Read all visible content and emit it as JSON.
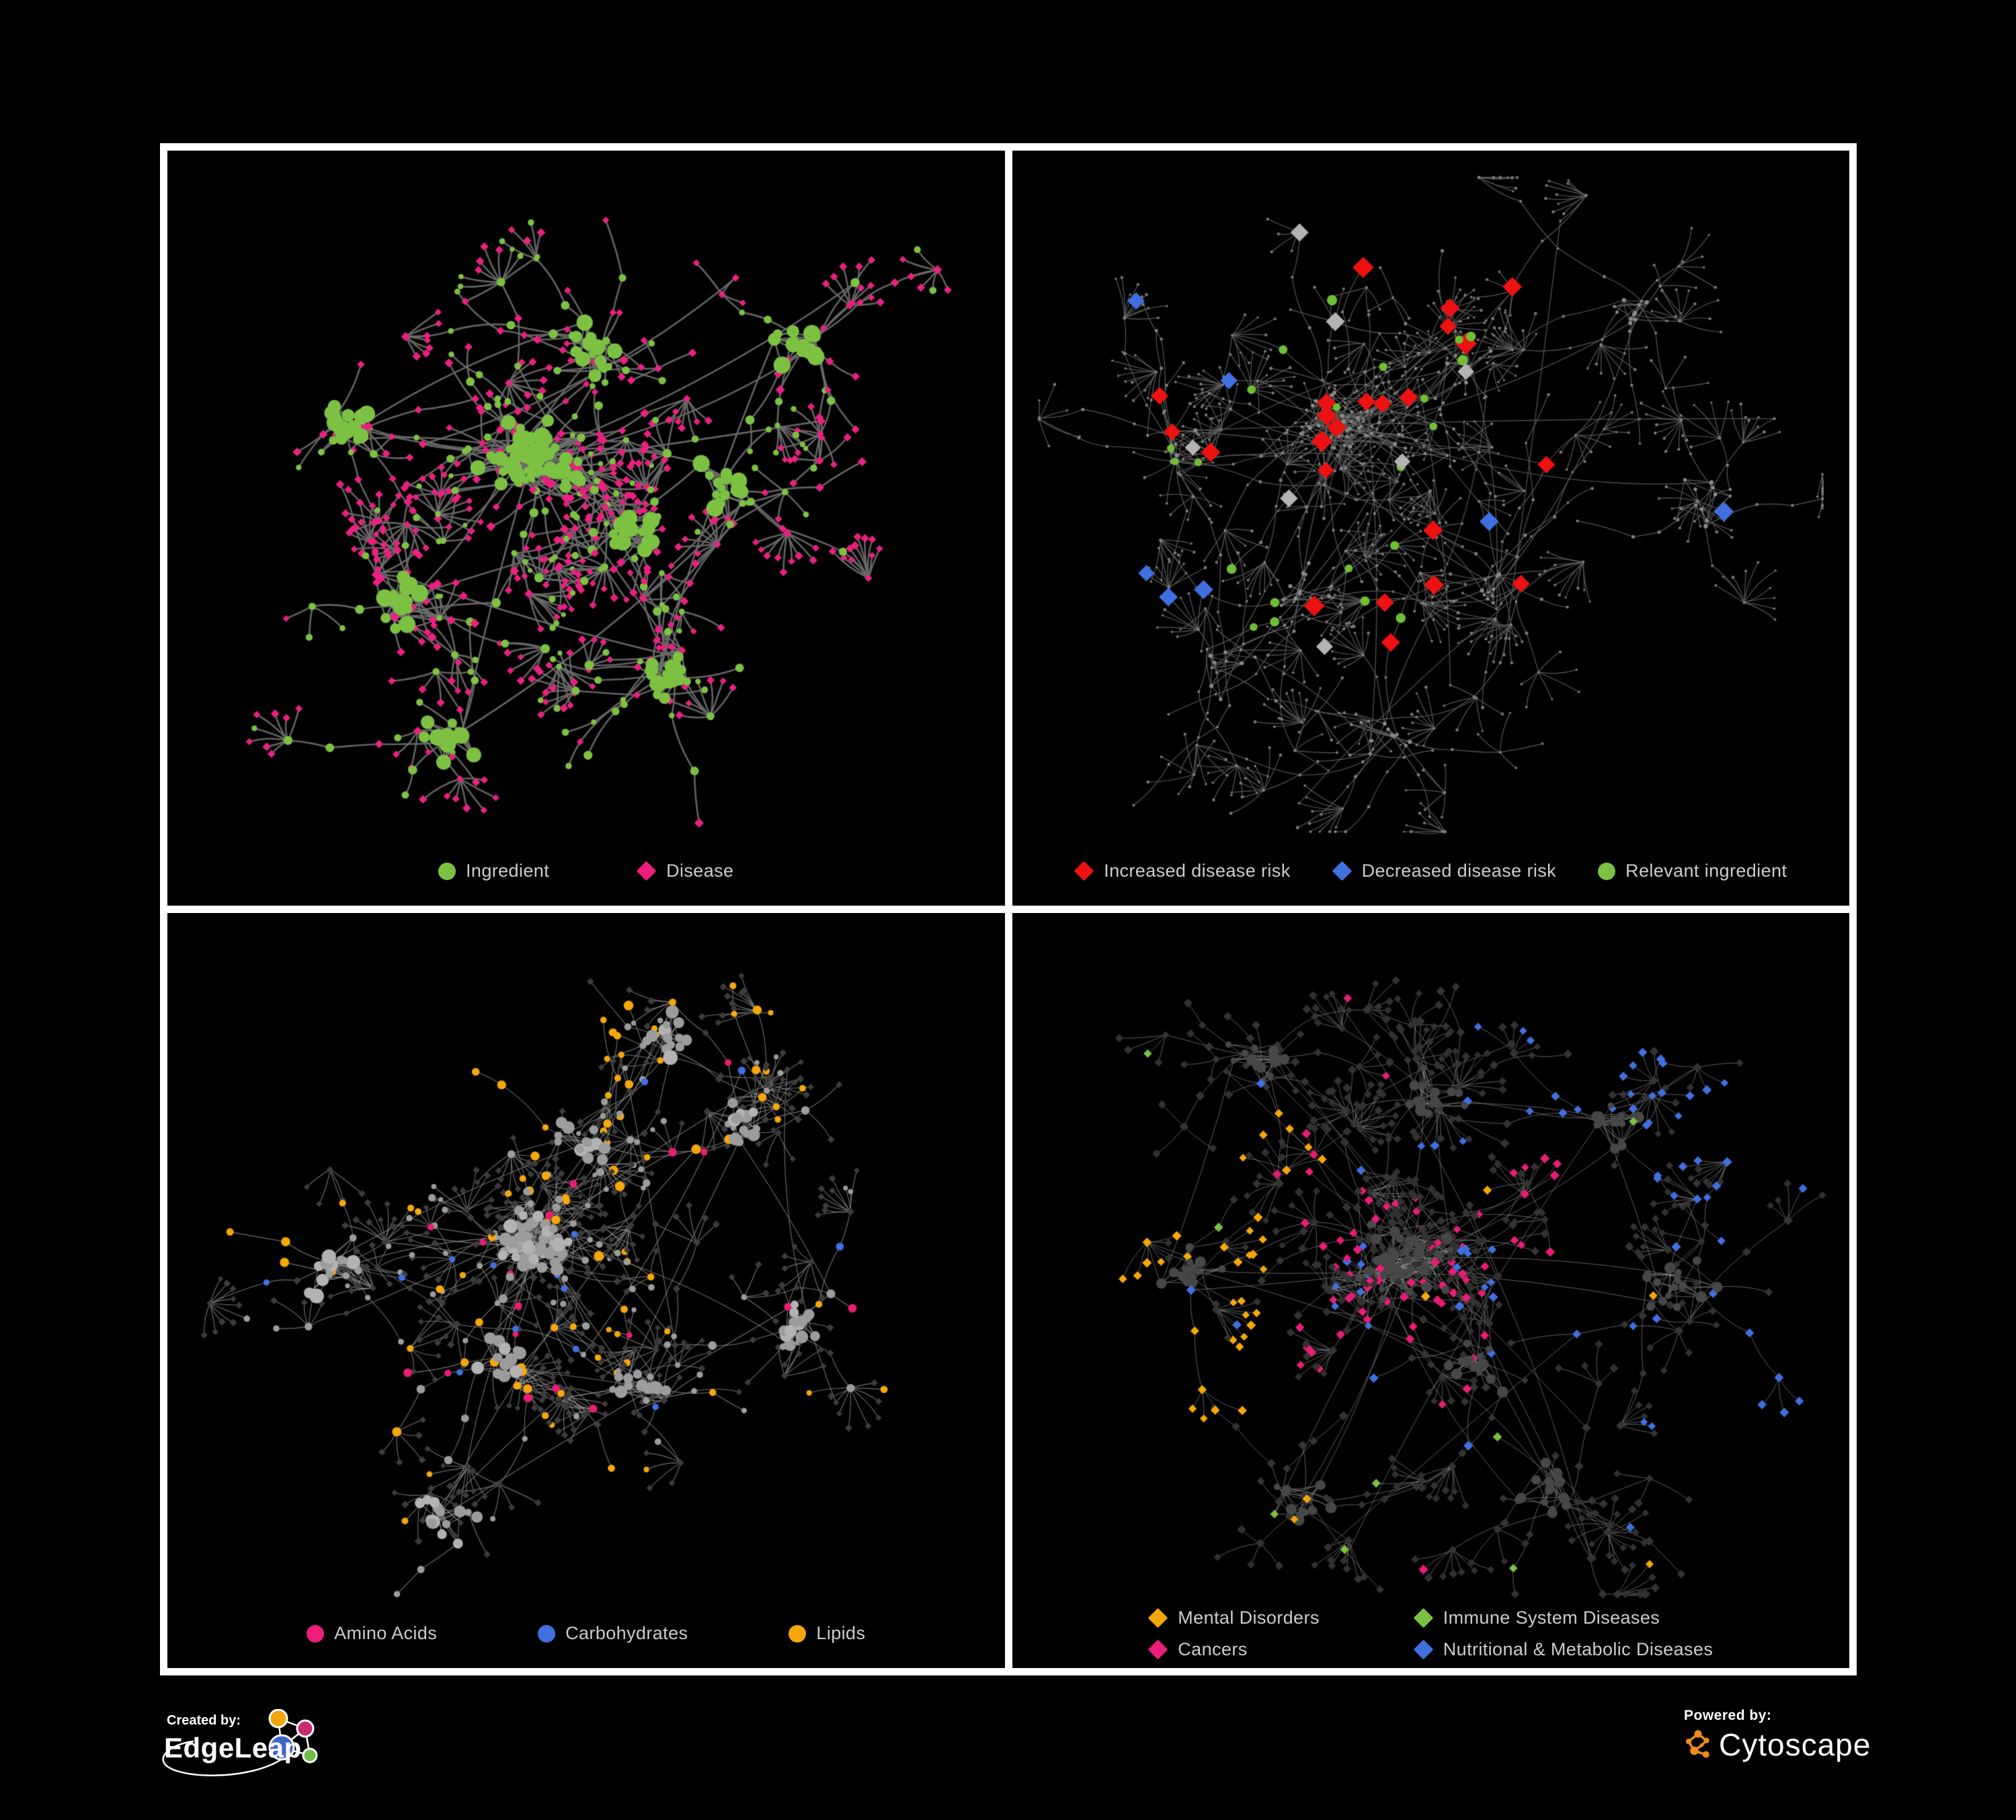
{
  "page": {
    "background": "#000000",
    "frame_border_color": "#FFFFFF"
  },
  "colors": {
    "green": "#7DC142",
    "magenta": "#EC1E79",
    "red": "#EE1111",
    "blue": "#4070E0",
    "orange": "#F5A70A",
    "gray_node": "#9C9C9C",
    "dark_diamond": "#343434",
    "legend_text": "#CCCCCC"
  },
  "panels": [
    {
      "id": "ingredient-disease",
      "legend": {
        "rows": [
          [
            {
              "shape": "circle",
              "color": "#7DC142",
              "label": "Ingredient"
            },
            {
              "shape": "diamond",
              "color": "#EC1E79",
              "label": "Disease"
            }
          ]
        ]
      },
      "network": {
        "seed": 7,
        "clusterPos": [
          [
            0.44,
            0.4
          ],
          [
            0.22,
            0.36
          ],
          [
            0.5,
            0.27
          ],
          [
            0.56,
            0.5
          ],
          [
            0.28,
            0.6
          ],
          [
            0.6,
            0.7
          ],
          [
            0.76,
            0.26
          ],
          [
            0.34,
            0.78
          ],
          [
            0.67,
            0.45
          ]
        ],
        "coreMain": 55,
        "coreSat": 16,
        "coreDensity": 0.65,
        "branches": 135,
        "branchLen": 3,
        "burstProb": 0.5,
        "burstMax": 8,
        "cross": 10,
        "edge": {
          "color": "#6B6B6B",
          "width": 2.6,
          "alpha": 0.92
        },
        "roles": {
          "core": [
            {
              "w": 1,
              "shape": "circle",
              "color": "#7DC142",
              "rmin": 5,
              "rmax": 13
            }
          ],
          "mid": [
            {
              "w": 0.42,
              "shape": "circle",
              "color": "#7DC142",
              "rmin": 4,
              "rmax": 7
            },
            {
              "w": 0.58,
              "shape": "diamond",
              "color": "#E82180",
              "rmin": 4,
              "rmax": 5.5
            }
          ],
          "leaf": [
            {
              "w": 0.8,
              "shape": "diamond",
              "color": "#E82180",
              "rmin": 3.8,
              "rmax": 5
            },
            {
              "w": 0.2,
              "shape": "circle",
              "color": "#7DC142",
              "rmin": 3.5,
              "rmax": 5.5
            }
          ]
        }
      }
    },
    {
      "id": "disease-risk",
      "legend": {
        "rows": [
          [
            {
              "shape": "diamond",
              "color": "#EE1111",
              "label": "Increased disease risk"
            },
            {
              "shape": "diamond",
              "color": "#4070E0",
              "label": "Decreased disease risk"
            },
            {
              "shape": "circle",
              "color": "#7DC142",
              "label": "Relevant ingredient"
            }
          ]
        ]
      },
      "network": {
        "seed": 23,
        "clusterPos": [
          [
            0.4,
            0.36
          ],
          [
            0.2,
            0.38
          ],
          [
            0.54,
            0.28
          ],
          [
            0.34,
            0.58
          ],
          [
            0.58,
            0.58
          ],
          [
            0.74,
            0.22
          ],
          [
            0.82,
            0.46
          ],
          [
            0.44,
            0.78
          ],
          [
            0.26,
            0.68
          ]
        ],
        "coreMain": 40,
        "coreSat": 12,
        "coreDensity": 0.5,
        "branches": 160,
        "branchLen": 4,
        "burstProb": 0.55,
        "burstMax": 9,
        "cross": 12,
        "edge": {
          "color": "#5E5E5E",
          "width": 1.2,
          "alpha": 0.95
        },
        "roles": {
          "core": [
            {
              "w": 1,
              "shape": "circle",
              "color": "#8A8A8A",
              "rmin": 2,
              "rmax": 3.2
            }
          ],
          "mid": [
            {
              "w": 1,
              "shape": "circle",
              "color": "#7F7F7F",
              "rmin": 1.8,
              "rmax": 2.6
            }
          ],
          "leaf": [
            {
              "w": 1,
              "shape": "circle",
              "color": "#777777",
              "rmin": 1.6,
              "rmax": 2.4
            }
          ]
        },
        "overlays": [
          {
            "count": 26,
            "shape": "diamond",
            "color": "#EE1111",
            "zone": "central",
            "rmin": 9.5,
            "rmax": 12.5
          },
          {
            "count": 7,
            "shape": "diamond",
            "color": "#B3B3B3",
            "zone": "central",
            "rmin": 9,
            "rmax": 11
          },
          {
            "count": 7,
            "shape": "diamond",
            "color": "#4070E0",
            "zone": "any",
            "rmin": 9,
            "rmax": 11.5
          },
          {
            "count": 22,
            "shape": "circle",
            "color": "#6FBF34",
            "zone": "central",
            "rmin": 5.5,
            "rmax": 8
          }
        ]
      }
    },
    {
      "id": "macronutrient-classes",
      "legend": {
        "rows": [
          [
            {
              "shape": "circle",
              "color": "#EC1E79",
              "label": "Amino Acids"
            },
            {
              "shape": "circle",
              "color": "#4070E0",
              "label": "Carbohydrates"
            },
            {
              "shape": "circle",
              "color": "#F5A70A",
              "label": "Lipids"
            }
          ]
        ]
      },
      "network": {
        "seed": 5,
        "clusterPos": [
          [
            0.44,
            0.44
          ],
          [
            0.21,
            0.47
          ],
          [
            0.5,
            0.31
          ],
          [
            0.4,
            0.6
          ],
          [
            0.56,
            0.62
          ],
          [
            0.68,
            0.28
          ],
          [
            0.76,
            0.54
          ],
          [
            0.34,
            0.8
          ],
          [
            0.6,
            0.16
          ]
        ],
        "coreMain": 60,
        "coreSat": 14,
        "coreDensity": 0.6,
        "branches": 130,
        "branchLen": 3,
        "burstProb": 0.5,
        "burstMax": 9,
        "cross": 10,
        "edge": {
          "color": "#8F8F8F",
          "width": 1.1,
          "alpha": 0.8
        },
        "roles": {
          "core": [
            {
              "w": 0.8,
              "shape": "circle",
              "color": "#9C9C9C",
              "rmin": 5,
              "rmax": 10
            },
            {
              "w": 0.2,
              "shape": "circle",
              "color": "#B3B3B3",
              "rmin": 6,
              "rmax": 11
            }
          ],
          "mid": [
            {
              "w": 0.5,
              "shape": "diamond",
              "color": "#3C3C3C",
              "rmin": 3.6,
              "rmax": 4.6
            },
            {
              "w": 0.22,
              "shape": "circle",
              "color": "#9C9C9C",
              "rmin": 4,
              "rmax": 6.5
            },
            {
              "w": 0.15,
              "shape": "circle",
              "color": "#F5A70A",
              "rmin": 4.5,
              "rmax": 7
            },
            {
              "w": 0.08,
              "shape": "circle",
              "color": "#E81D74",
              "rmin": 4.5,
              "rmax": 6.5
            },
            {
              "w": 0.05,
              "shape": "circle",
              "color": "#4070E0",
              "rmin": 4.5,
              "rmax": 6
            }
          ],
          "leaf": [
            {
              "w": 0.82,
              "shape": "diamond",
              "color": "#3C3C3C",
              "rmin": 3.4,
              "rmax": 4.4
            },
            {
              "w": 0.12,
              "shape": "circle",
              "color": "#9C9C9C",
              "rmin": 3.5,
              "rmax": 5
            },
            {
              "w": 0.06,
              "shape": "circle",
              "color": "#F5A70A",
              "rmin": 4,
              "rmax": 5.5
            }
          ]
        },
        "clusterStyles": [
          {
            "cluster": 2,
            "prob": 0.5,
            "shape": "circle",
            "color": "#F5A70A",
            "rmin": 4.5,
            "rmax": 7.5
          }
        ]
      }
    },
    {
      "id": "disease-categories",
      "legend": {
        "rows": [
          [
            {
              "shape": "diamond",
              "color": "#F5A70A",
              "label": "Mental Disorders"
            },
            {
              "shape": "diamond",
              "color": "#7AC143",
              "label": "Immune System Diseases"
            }
          ],
          [
            {
              "shape": "diamond",
              "color": "#EC1E79",
              "label": "Cancers"
            },
            {
              "shape": "diamond",
              "color": "#4070E0",
              "label": "Nutritional & Metabolic Diseases"
            }
          ]
        ]
      },
      "network": {
        "seed": 91,
        "clusterPos": [
          [
            0.46,
            0.46
          ],
          [
            0.22,
            0.48
          ],
          [
            0.55,
            0.6
          ],
          [
            0.5,
            0.24
          ],
          [
            0.72,
            0.28
          ],
          [
            0.8,
            0.5
          ],
          [
            0.34,
            0.78
          ],
          [
            0.64,
            0.76
          ],
          [
            0.3,
            0.2
          ]
        ],
        "coreMain": 55,
        "coreSat": 16,
        "coreDensity": 0.6,
        "branches": 140,
        "branchLen": 3,
        "burstProb": 0.5,
        "burstMax": 9,
        "cross": 12,
        "edge": {
          "color": "#9C9C9C",
          "width": 1.0,
          "alpha": 0.6
        },
        "roles": {
          "core": [
            {
              "w": 1,
              "shape": "circle",
              "color": "#474747",
              "rmin": 4.5,
              "rmax": 8.5
            }
          ],
          "mid": [
            {
              "w": 1,
              "shape": "diamond",
              "color": "#343434",
              "rmin": 4.2,
              "rmax": 5.4
            }
          ],
          "leaf": [
            {
              "w": 1,
              "shape": "diamond",
              "color": "#313131",
              "rmin": 4,
              "rmax": 5.2
            }
          ]
        },
        "clusterStyles": [
          {
            "cluster": 1,
            "prob": 0.8,
            "shape": "diamond",
            "color": "#F5A70A",
            "rmin": 4.4,
            "rmax": 5.6
          },
          {
            "cluster": 0,
            "prob": 0.3,
            "shape": "diamond",
            "color": "#E81D74",
            "rmin": 4.4,
            "rmax": 5.6
          },
          {
            "cluster": 2,
            "prob": 0.5,
            "shape": "diamond",
            "color": "#4070E0",
            "rmin": 4.4,
            "rmax": 5.6
          },
          {
            "cluster": 4,
            "prob": 0.45,
            "shape": "diamond",
            "color": "#4070E0",
            "rmin": 4.4,
            "rmax": 5.6
          },
          {
            "cluster": 5,
            "prob": 0.3,
            "shape": "diamond",
            "color": "#4070E0",
            "rmin": 4.4,
            "rmax": 5.6
          }
        ],
        "overlays": [
          {
            "count": 10,
            "shape": "diamond",
            "color": "#E81D74",
            "zone": "any",
            "rmin": 4.6,
            "rmax": 5.6
          },
          {
            "count": 14,
            "shape": "diamond",
            "color": "#4070E0",
            "zone": "any",
            "rmin": 4.6,
            "rmax": 5.6
          },
          {
            "count": 8,
            "shape": "diamond",
            "color": "#7AC143",
            "zone": "any",
            "rmin": 4.6,
            "rmax": 5.6
          },
          {
            "count": 8,
            "shape": "diamond",
            "color": "#F5A70A",
            "zone": "any",
            "rmin": 4.6,
            "rmax": 5.6
          }
        ]
      }
    }
  ],
  "footer": {
    "created_by": {
      "label": "Created by:",
      "brand": "EdgeLeap"
    },
    "powered_by": {
      "label": "Powered by:",
      "brand": "Cytoscape"
    }
  },
  "logos": {
    "edgeleap_nodes": [
      "#F3A50C",
      "#C72B70",
      "#3E66C9",
      "#71BE44"
    ],
    "cytoscape_orange": "#EC8C1C"
  }
}
